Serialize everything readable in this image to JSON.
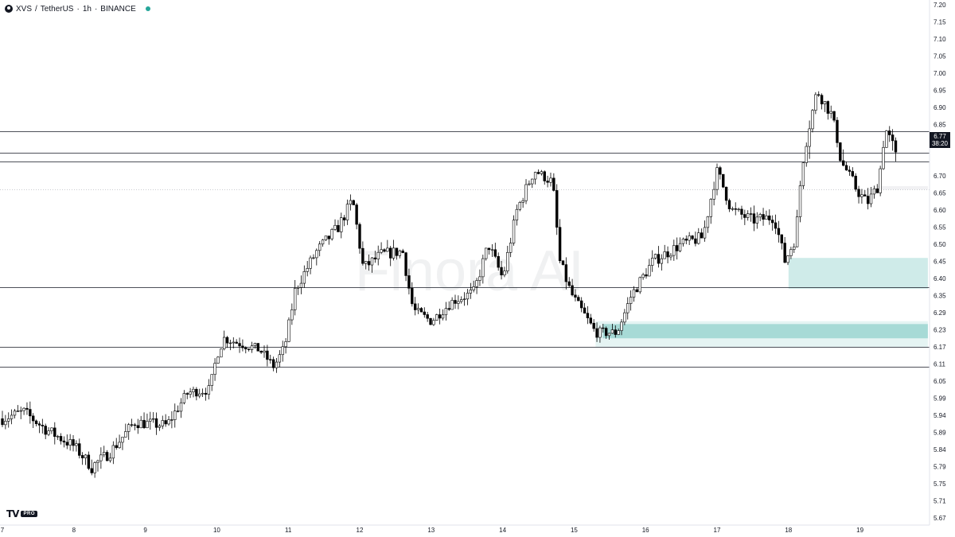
{
  "header": {
    "symbol": "XVS",
    "separator": "/",
    "quote": "TetherUS",
    "interval": "1h",
    "exchange": "BINANCE",
    "middot": "·",
    "status_color": "#26a69a"
  },
  "watermark": "Finora AI",
  "branding": {
    "logo_mark": "TV",
    "pro_badge": "PRO"
  },
  "current_price": {
    "value": "6.77",
    "countdown": "38:20"
  },
  "colors": {
    "up_candle": "#ffffff",
    "down_candle": "#000000",
    "wick": "#000000",
    "level_line": "#131722",
    "demand_zone": "#26a69a",
    "support_zone": "#b2dfdb"
  },
  "chart_data": {
    "type": "candlestick",
    "title": "",
    "xlabel": "",
    "ylabel": "",
    "ylim": [
      5.67,
      7.2
    ],
    "x_ticks": [
      "7",
      "8",
      "9",
      "10",
      "11",
      "12",
      "13",
      "14",
      "15",
      "16",
      "17",
      "18",
      "19"
    ],
    "y_ticks": [
      "7.20",
      "7.15",
      "7.10",
      "7.05",
      "7.00",
      "6.95",
      "6.90",
      "6.85",
      "6.80",
      "6.77",
      "6.70",
      "6.65",
      "6.60",
      "6.55",
      "6.50",
      "6.45",
      "6.40",
      "6.35",
      "6.29",
      "6.23",
      "6.17",
      "6.11",
      "6.05",
      "5.99",
      "5.94",
      "5.89",
      "5.84",
      "5.79",
      "5.75",
      "5.71",
      "5.67"
    ],
    "horizontal_levels": [
      6.83,
      6.78,
      6.76,
      6.375,
      6.17,
      6.1
    ],
    "dotted_levels": [
      6.66
    ],
    "zones": [
      {
        "name": "upper-demand",
        "x_start": 18.0,
        "x_end": 19.95,
        "y_low": 6.37,
        "y_high": 6.46,
        "opacity": 0.22
      },
      {
        "name": "lower-demand",
        "x_start": 15.4,
        "x_end": 19.95,
        "y_low": 6.2,
        "y_high": 6.25,
        "opacity": 0.32
      },
      {
        "name": "lower-demand-base",
        "x_start": 15.3,
        "x_end": 19.95,
        "y_low": 6.17,
        "y_high": 6.26,
        "opacity": 0.12
      },
      {
        "name": "small-gray-box",
        "x_start": 19.25,
        "x_end": 19.95,
        "y_low": 6.66,
        "y_high": 6.67,
        "opacity": 0.18
      }
    ],
    "price_path": [
      [
        7.0,
        5.93
      ],
      [
        7.3,
        5.95
      ],
      [
        7.6,
        5.9
      ],
      [
        8.0,
        5.85
      ],
      [
        8.25,
        5.79
      ],
      [
        8.5,
        5.83
      ],
      [
        8.85,
        5.92
      ],
      [
        9.3,
        5.91
      ],
      [
        9.6,
        6.01
      ],
      [
        9.9,
        6.02
      ],
      [
        10.0,
        6.14
      ],
      [
        10.1,
        6.2
      ],
      [
        10.6,
        6.16
      ],
      [
        10.8,
        6.1
      ],
      [
        10.95,
        6.17
      ],
      [
        11.1,
        6.37
      ],
      [
        11.4,
        6.48
      ],
      [
        11.7,
        6.55
      ],
      [
        11.9,
        6.63
      ],
      [
        12.05,
        6.43
      ],
      [
        12.3,
        6.47
      ],
      [
        12.6,
        6.48
      ],
      [
        12.75,
        6.3
      ],
      [
        13.0,
        6.26
      ],
      [
        13.3,
        6.33
      ],
      [
        13.6,
        6.36
      ],
      [
        13.8,
        6.5
      ],
      [
        14.0,
        6.4
      ],
      [
        14.2,
        6.6
      ],
      [
        14.45,
        6.72
      ],
      [
        14.7,
        6.68
      ],
      [
        14.8,
        6.45
      ],
      [
        14.95,
        6.36
      ],
      [
        15.3,
        6.22
      ],
      [
        15.6,
        6.22
      ],
      [
        15.8,
        6.35
      ],
      [
        16.1,
        6.45
      ],
      [
        16.5,
        6.5
      ],
      [
        16.8,
        6.52
      ],
      [
        17.0,
        6.72
      ],
      [
        17.2,
        6.6
      ],
      [
        17.5,
        6.57
      ],
      [
        17.8,
        6.58
      ],
      [
        17.95,
        6.45
      ],
      [
        18.1,
        6.52
      ],
      [
        18.2,
        6.76
      ],
      [
        18.4,
        6.95
      ],
      [
        18.6,
        6.88
      ],
      [
        18.75,
        6.75
      ],
      [
        18.95,
        6.66
      ],
      [
        19.1,
        6.62
      ],
      [
        19.25,
        6.67
      ],
      [
        19.35,
        6.84
      ],
      [
        19.5,
        6.77
      ]
    ]
  }
}
